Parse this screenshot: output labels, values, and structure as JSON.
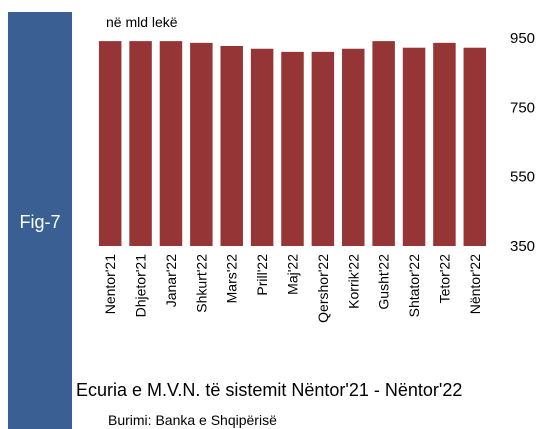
{
  "side_label": "Fig-7",
  "chart_data": {
    "type": "bar",
    "title": "Ecuria e M.V.N. të sistemit Nëntor'21 - Nëntor'22",
    "source": "Burimi: Banka e Shqipërisë",
    "unit_label": "në mld lekë",
    "categories": [
      "Nentor'21",
      "Dhjetor'21",
      "Janar'22",
      "Shkurt'22",
      "Mars'22",
      "Prill'22",
      "Maj'22",
      "Qershor'22",
      "Korrik'22",
      "Gusht'22",
      "Shtator'22",
      "Tetor'22",
      "Nëntor'22"
    ],
    "values": [
      941,
      941,
      941,
      936,
      927,
      919,
      910,
      910,
      919,
      941,
      922,
      936,
      922
    ],
    "color": "#963535",
    "ylim": [
      350,
      950
    ],
    "yticks": [
      350,
      550,
      750,
      950
    ],
    "grid": false
  }
}
